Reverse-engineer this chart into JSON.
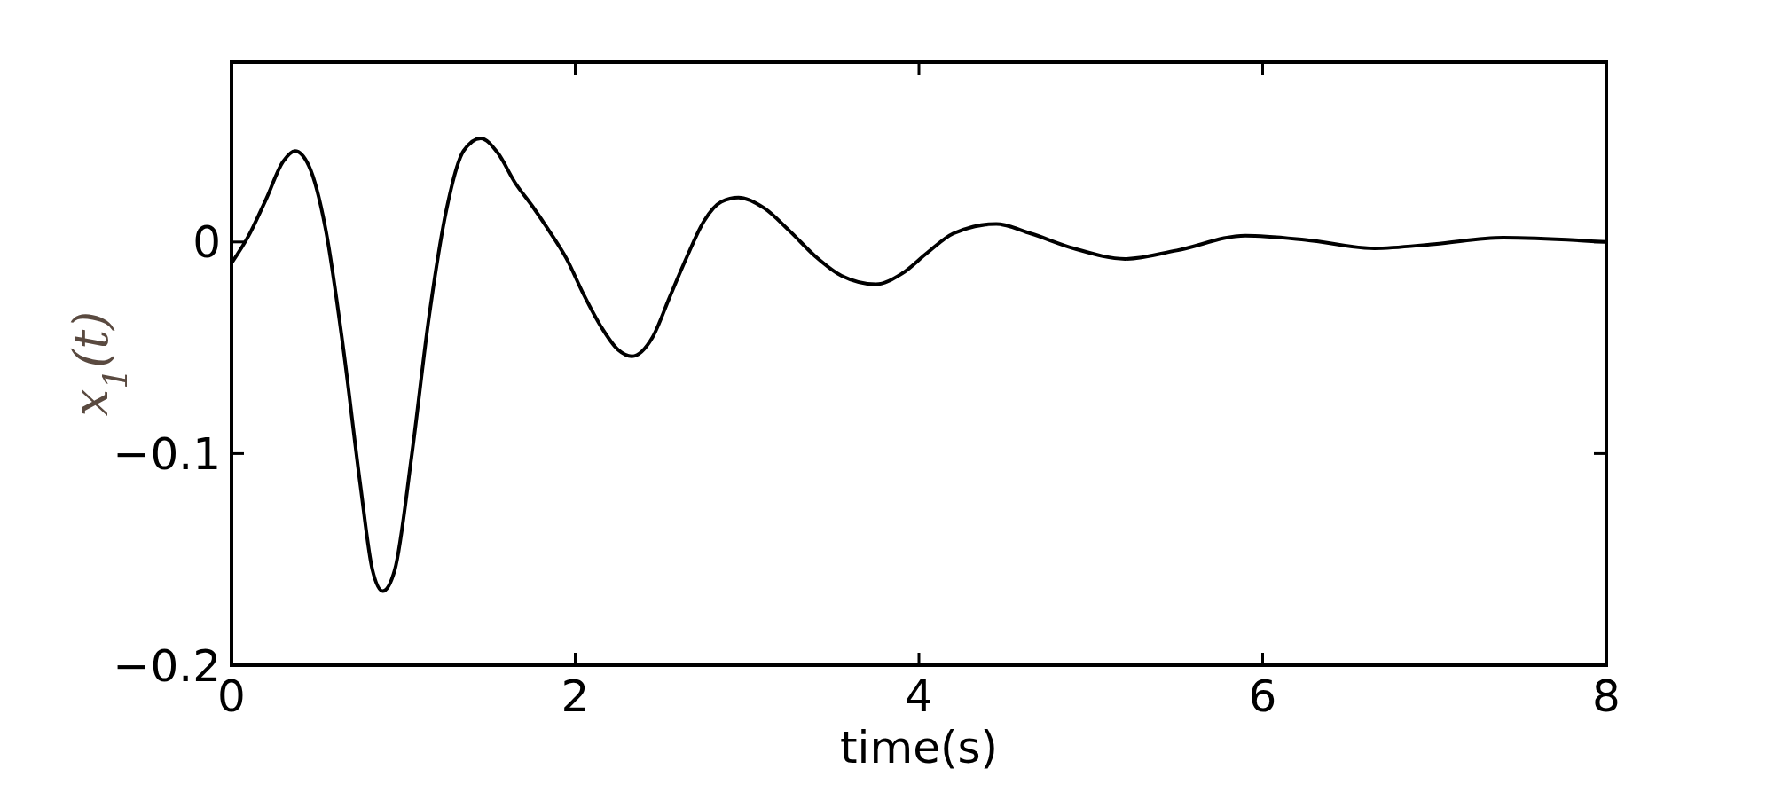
{
  "chart_data": {
    "type": "line",
    "xlabel": "time(s)",
    "ylabel": "x$_{1}$(t)",
    "x": [
      0,
      0.1,
      0.2,
      0.3,
      0.37,
      0.45,
      0.55,
      0.65,
      0.75,
      0.82,
      0.88,
      0.95,
      1.05,
      1.15,
      1.25,
      1.35,
      1.45,
      1.55,
      1.65,
      1.75,
      1.85,
      1.95,
      2.05,
      2.15,
      2.25,
      2.33,
      2.45,
      2.55,
      2.65,
      2.75,
      2.85,
      2.95,
      3.1,
      3.25,
      3.4,
      3.55,
      3.75,
      3.9,
      4.05,
      4.2,
      4.45,
      4.65,
      4.9,
      5.2,
      5.5,
      5.9,
      6.25,
      6.65,
      7.0,
      7.4,
      8
    ],
    "series": [
      {
        "color": "#000000",
        "values": [
          -0.01,
          0.003,
          0.02,
          0.038,
          0.043,
          0.036,
          0.005,
          -0.05,
          -0.115,
          -0.155,
          -0.165,
          -0.155,
          -0.1,
          -0.035,
          0.015,
          0.043,
          0.049,
          0.042,
          0.028,
          0.017,
          0.005,
          -0.008,
          -0.025,
          -0.04,
          -0.051,
          -0.054,
          -0.045,
          -0.026,
          -0.007,
          0.01,
          0.019,
          0.021,
          0.016,
          0.005,
          -0.007,
          -0.016,
          -0.02,
          -0.015,
          -0.005,
          0.004,
          0.0085,
          0.004,
          -0.003,
          -0.008,
          -0.004,
          0.003,
          0.001,
          -0.003,
          -0.001,
          0.002,
          0
        ]
      }
    ],
    "xlim": [
      0,
      8
    ],
    "xticks": [
      0,
      2,
      4,
      6,
      8
    ],
    "ylim": [
      -0.2,
      0.085
    ],
    "yticks": [
      {
        "value": -0.2,
        "label": "−0.2"
      },
      {
        "value": -0.1,
        "label": "−0.1"
      },
      0
    ],
    "grid": false,
    "line_style": "solid"
  }
}
